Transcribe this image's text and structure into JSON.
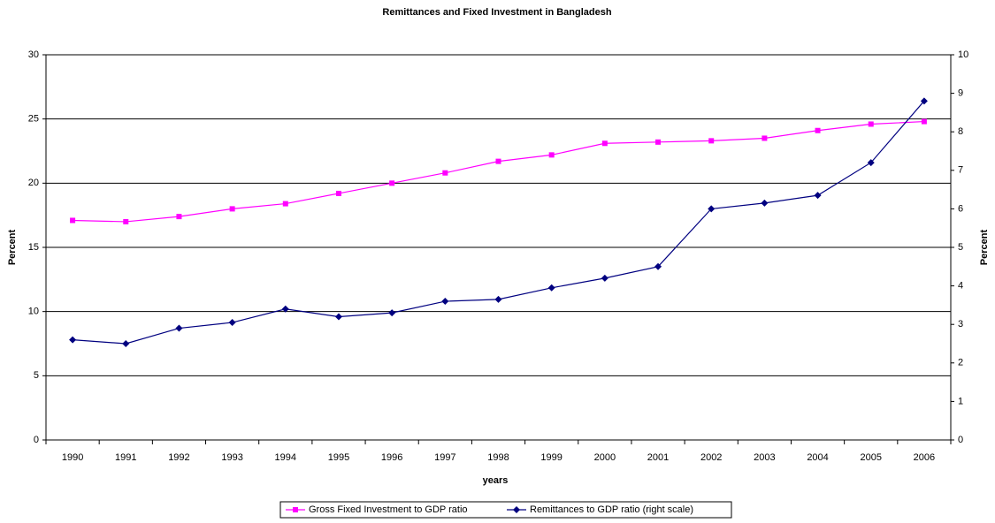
{
  "chart_data": {
    "type": "line",
    "title": "Remittances and Fixed Investment in Bangladesh",
    "x_label": "years",
    "y_label": "Percent",
    "y2_label": "Percent",
    "categories": [
      "1990",
      "1991",
      "1992",
      "1993",
      "1994",
      "1995",
      "1996",
      "1997",
      "1998",
      "1999",
      "2000",
      "2001",
      "2002",
      "2003",
      "2004",
      "2005",
      "2006"
    ],
    "series": [
      {
        "name": "Gross Fixed Investment to GDP ratio",
        "color": "#ff00ff",
        "marker": "square",
        "values": [
          17.1,
          17.0,
          17.4,
          18.0,
          18.4,
          19.2,
          20.0,
          20.8,
          21.7,
          22.2,
          23.1,
          23.2,
          23.3,
          23.5,
          24.1,
          24.6,
          24.8
        ]
      },
      {
        "name": "Remittances to GDP ratio (right scale)",
        "color": "#000080",
        "marker": "diamond",
        "axis": "y2",
        "values": [
          2.6,
          2.5,
          2.9,
          3.05,
          3.4,
          3.2,
          3.3,
          3.6,
          3.65,
          3.95,
          4.2,
          4.5,
          6.0,
          6.15,
          6.35,
          7.2,
          8.8
        ]
      }
    ],
    "ylim": [
      0,
      30
    ],
    "yticks": [
      0,
      5,
      10,
      15,
      20,
      25,
      30
    ],
    "y2lim": [
      0,
      10
    ],
    "y2ticks": [
      0,
      1,
      2,
      3,
      4,
      5,
      6,
      7,
      8,
      9,
      10
    ],
    "grid": true,
    "legend": "bottom"
  }
}
